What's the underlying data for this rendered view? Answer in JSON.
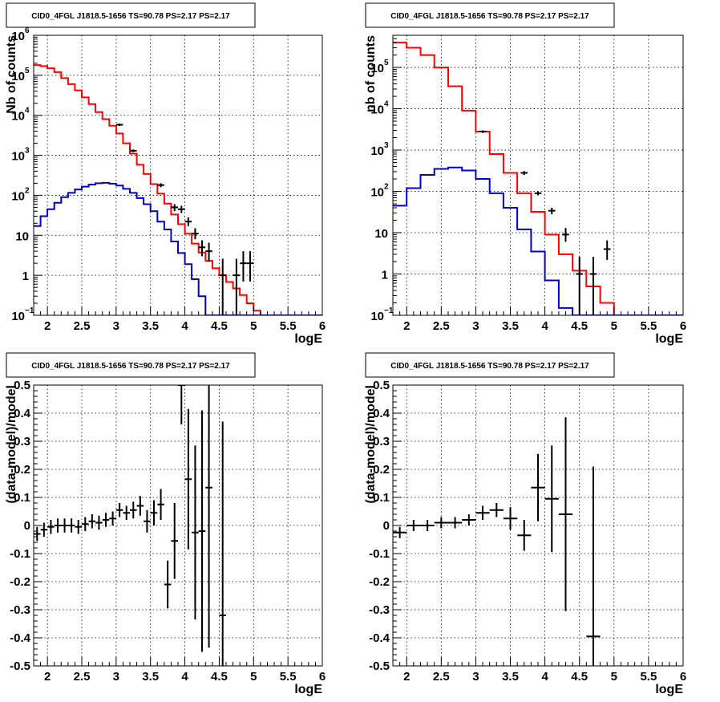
{
  "chart_data": [
    {
      "type": "line",
      "title": "CID0_4FGL J1818.5-1656 TS=90.78 PS=2.17 PS=2.17",
      "xlabel": "logE",
      "ylabel": "Nb of counts",
      "xlim": [
        1.8,
        6.0
      ],
      "ylim": [
        0.1,
        1000000
      ],
      "yscale": "log",
      "grid": true,
      "x_ticks": [
        "2",
        "2.5",
        "3",
        "3.5",
        "4",
        "4.5",
        "5",
        "5.5",
        "6"
      ],
      "y_ticks": [
        {
          "value": 0.1,
          "mantissa": "10",
          "exp": "−1"
        },
        {
          "value": 1,
          "mantissa": "1",
          "exp": ""
        },
        {
          "value": 10,
          "mantissa": "10",
          "exp": ""
        },
        {
          "value": 100,
          "mantissa": "10",
          "exp": "2"
        },
        {
          "value": 1000,
          "mantissa": "10",
          "exp": "3"
        },
        {
          "value": 10000,
          "mantissa": "10",
          "exp": "4"
        },
        {
          "value": 100000,
          "mantissa": "10",
          "exp": "5"
        },
        {
          "value": 1000000,
          "mantissa": "10",
          "exp": "6"
        }
      ],
      "bin_edges": [
        1.8,
        1.9,
        2.0,
        2.1,
        2.2,
        2.3,
        2.4,
        2.5,
        2.6,
        2.7,
        2.8,
        2.9,
        3.0,
        3.1,
        3.2,
        3.3,
        3.4,
        3.5,
        3.6,
        3.7,
        3.8,
        3.9,
        4.0,
        4.1,
        4.2,
        4.3,
        4.4,
        4.5,
        4.6,
        4.7,
        4.8,
        4.9,
        5.0,
        5.1,
        5.2,
        5.3,
        5.4,
        5.5,
        5.6,
        5.7,
        5.8,
        5.9,
        6.0
      ],
      "series": [
        {
          "color": "#ff0000",
          "values": [
            180000,
            170000,
            150000,
            120000,
            85000,
            60000,
            42000,
            28000,
            19000,
            12000,
            8000,
            5500,
            3500,
            2000,
            1100,
            580,
            340,
            190,
            110,
            62,
            33,
            19,
            11,
            6.2,
            3.7,
            2.3,
            1.5,
            1.0,
            0.68,
            0.47,
            0.32,
            0.2,
            0.13,
            0.1,
            0.05,
            0.05,
            0.05,
            0.05,
            0.05,
            0.05,
            0.05,
            0.05
          ]
        },
        {
          "color": "#0000cc",
          "values": [
            17,
            30,
            45,
            65,
            90,
            115,
            140,
            165,
            185,
            200,
            205,
            195,
            175,
            145,
            115,
            85,
            60,
            40,
            22,
            14,
            7,
            3.6,
            1.9,
            0.8,
            0.3,
            0.05,
            0.05,
            0.05,
            0.05,
            0.05,
            0.05,
            0.05,
            0.05,
            0.05,
            0.05,
            0.05,
            0.05,
            0.05,
            0.05,
            0.05,
            0.05,
            0.05
          ]
        }
      ],
      "data_points": [
        {
          "x": 3.05,
          "y": 5800,
          "ylo": 5400,
          "yhi": 6200
        },
        {
          "x": 3.25,
          "y": 1300,
          "ylo": 1200,
          "yhi": 1400
        },
        {
          "x": 3.65,
          "y": 180,
          "ylo": 160,
          "yhi": 200
        },
        {
          "x": 3.85,
          "y": 50,
          "ylo": 40,
          "yhi": 60
        },
        {
          "x": 3.95,
          "y": 45,
          "ylo": 36,
          "yhi": 55
        },
        {
          "x": 4.05,
          "y": 22,
          "ylo": 17,
          "yhi": 28
        },
        {
          "x": 4.15,
          "y": 11,
          "ylo": 8,
          "yhi": 15
        },
        {
          "x": 4.25,
          "y": 5,
          "ylo": 3,
          "yhi": 7.5
        },
        {
          "x": 4.35,
          "y": 4,
          "ylo": 2.2,
          "yhi": 6.5
        },
        {
          "x": 4.55,
          "y": 1,
          "ylo": 0.1,
          "yhi": 2.6
        },
        {
          "x": 4.75,
          "y": 1,
          "ylo": 0.1,
          "yhi": 2.6
        },
        {
          "x": 4.85,
          "y": 2,
          "ylo": 0.7,
          "yhi": 4
        },
        {
          "x": 4.95,
          "y": 2,
          "ylo": 0.7,
          "yhi": 4
        }
      ]
    },
    {
      "type": "line",
      "title": "CID0_4FGL J1818.5-1656 TS=90.78 PS=2.17 PS=2.17",
      "xlabel": "logE",
      "ylabel": "nb of counts",
      "xlim": [
        1.8,
        6.0
      ],
      "ylim": [
        0.1,
        600000
      ],
      "yscale": "log",
      "grid": true,
      "x_ticks": [
        "2",
        "2.5",
        "3",
        "3.5",
        "4",
        "4.5",
        "5",
        "5.5",
        "6"
      ],
      "y_ticks": [
        {
          "value": 0.1,
          "mantissa": "10",
          "exp": "−1"
        },
        {
          "value": 1,
          "mantissa": "1",
          "exp": ""
        },
        {
          "value": 10,
          "mantissa": "10",
          "exp": ""
        },
        {
          "value": 100,
          "mantissa": "10",
          "exp": "2"
        },
        {
          "value": 1000,
          "mantissa": "10",
          "exp": "3"
        },
        {
          "value": 10000,
          "mantissa": "10",
          "exp": "4"
        },
        {
          "value": 100000,
          "mantissa": "10",
          "exp": "5"
        }
      ],
      "bin_edges": [
        1.8,
        2.0,
        2.2,
        2.4,
        2.6,
        2.8,
        3.0,
        3.2,
        3.4,
        3.6,
        3.8,
        4.0,
        4.2,
        4.4,
        4.6,
        4.8,
        5.0,
        5.2,
        5.4,
        5.6,
        5.8,
        6.0
      ],
      "series": [
        {
          "color": "#ff0000",
          "values": [
            400000,
            300000,
            200000,
            100000,
            35000,
            9000,
            2800,
            800,
            280,
            90,
            32,
            9,
            3,
            1.2,
            0.5,
            0.2,
            0.05,
            0.05,
            0.05,
            0.05,
            0.05
          ]
        },
        {
          "color": "#0000cc",
          "values": [
            45,
            120,
            250,
            350,
            380,
            320,
            200,
            90,
            40,
            12,
            3.5,
            0.7,
            0.15,
            0.05,
            0.05,
            0.05,
            0.05,
            0.05,
            0.05,
            0.05,
            0.05
          ]
        }
      ],
      "data_points": [
        {
          "x": 3.1,
          "y": 2800,
          "ylo": 2600,
          "yhi": 3000
        },
        {
          "x": 3.7,
          "y": 280,
          "ylo": 250,
          "yhi": 310
        },
        {
          "x": 3.9,
          "y": 90,
          "ylo": 80,
          "yhi": 100
        },
        {
          "x": 4.1,
          "y": 34,
          "ylo": 28,
          "yhi": 40
        },
        {
          "x": 4.3,
          "y": 9,
          "ylo": 6,
          "yhi": 13
        },
        {
          "x": 4.5,
          "y": 1,
          "ylo": 0.1,
          "yhi": 2.6
        },
        {
          "x": 4.7,
          "y": 1,
          "ylo": 0.1,
          "yhi": 2.6
        },
        {
          "x": 4.9,
          "y": 4,
          "ylo": 2.2,
          "yhi": 6.5
        }
      ]
    },
    {
      "type": "scatter",
      "title": "CID0_4FGL J1818.5-1656 TS=90.78 PS=2.17 PS=2.17",
      "xlabel": "logE",
      "ylabel": "(data-model)/model",
      "xlim": [
        1.8,
        6.0
      ],
      "ylim": [
        -0.5,
        0.5
      ],
      "yscale": "linear",
      "grid": true,
      "x_ticks": [
        "2",
        "2.5",
        "3",
        "3.5",
        "4",
        "4.5",
        "5",
        "5.5",
        "6"
      ],
      "y_ticks": [
        "-0.5",
        "-0.4",
        "-0.3",
        "-0.2",
        "-0.1",
        "0",
        "0.1",
        "0.2",
        "0.3",
        "0.4",
        "0.5"
      ],
      "data_points": [
        {
          "x": 1.85,
          "y": -0.03,
          "err": 0.025
        },
        {
          "x": 1.95,
          "y": -0.015,
          "err": 0.025
        },
        {
          "x": 2.05,
          "y": -0.005,
          "err": 0.025
        },
        {
          "x": 2.15,
          "y": 0.0,
          "err": 0.025
        },
        {
          "x": 2.25,
          "y": 0.0,
          "err": 0.025
        },
        {
          "x": 2.35,
          "y": 0.0,
          "err": 0.025
        },
        {
          "x": 2.45,
          "y": -0.005,
          "err": 0.025
        },
        {
          "x": 2.55,
          "y": 0.005,
          "err": 0.025
        },
        {
          "x": 2.65,
          "y": 0.015,
          "err": 0.025
        },
        {
          "x": 2.75,
          "y": 0.01,
          "err": 0.025
        },
        {
          "x": 2.85,
          "y": 0.02,
          "err": 0.025
        },
        {
          "x": 2.95,
          "y": 0.025,
          "err": 0.025
        },
        {
          "x": 3.05,
          "y": 0.055,
          "err": 0.025
        },
        {
          "x": 3.15,
          "y": 0.045,
          "err": 0.025
        },
        {
          "x": 3.25,
          "y": 0.055,
          "err": 0.03
        },
        {
          "x": 3.35,
          "y": 0.07,
          "err": 0.035
        },
        {
          "x": 3.45,
          "y": 0.015,
          "err": 0.04
        },
        {
          "x": 3.55,
          "y": 0.045,
          "err": 0.045
        },
        {
          "x": 3.65,
          "y": 0.075,
          "err": 0.055
        },
        {
          "x": 3.75,
          "y": -0.21,
          "err": 0.085
        },
        {
          "x": 3.85,
          "y": -0.055,
          "err": 0.135
        },
        {
          "x": 3.95,
          "y": 0.5,
          "err": 0.14
        },
        {
          "x": 4.05,
          "y": 0.165,
          "err": 0.25
        },
        {
          "x": 4.15,
          "y": -0.025,
          "err": 0.31
        },
        {
          "x": 4.25,
          "y": -0.02,
          "err": 0.43
        },
        {
          "x": 4.35,
          "y": 0.135,
          "err": 0.57
        },
        {
          "x": 4.55,
          "y": -0.32,
          "err": 0.69
        }
      ]
    },
    {
      "type": "scatter",
      "title": "CID0_4FGL J1818.5-1656 TS=90.78 PS=2.17 PS=2.17",
      "xlabel": "logE",
      "ylabel": "(data-model)/model",
      "xlim": [
        1.8,
        6.0
      ],
      "ylim": [
        -0.5,
        0.5
      ],
      "yscale": "linear",
      "grid": true,
      "x_ticks": [
        "2",
        "2.5",
        "3",
        "3.5",
        "4",
        "4.5",
        "5",
        "5.5",
        "6"
      ],
      "y_ticks": [
        "-0.5",
        "-0.4",
        "-0.3",
        "-0.2",
        "-0.1",
        "0",
        "0.1",
        "0.2",
        "0.3",
        "0.4",
        "0.5"
      ],
      "data_points": [
        {
          "x": 1.9,
          "y": -0.025,
          "err": 0.02,
          "xerr": 0.1
        },
        {
          "x": 2.1,
          "y": 0.0,
          "err": 0.02,
          "xerr": 0.1
        },
        {
          "x": 2.3,
          "y": 0.0,
          "err": 0.02,
          "xerr": 0.1
        },
        {
          "x": 2.5,
          "y": 0.01,
          "err": 0.02,
          "xerr": 0.1
        },
        {
          "x": 2.7,
          "y": 0.01,
          "err": 0.02,
          "xerr": 0.1
        },
        {
          "x": 2.9,
          "y": 0.02,
          "err": 0.02,
          "xerr": 0.1
        },
        {
          "x": 3.1,
          "y": 0.045,
          "err": 0.025,
          "xerr": 0.1
        },
        {
          "x": 3.3,
          "y": 0.055,
          "err": 0.025,
          "xerr": 0.1
        },
        {
          "x": 3.5,
          "y": 0.025,
          "err": 0.04,
          "xerr": 0.1
        },
        {
          "x": 3.7,
          "y": -0.035,
          "err": 0.055,
          "xerr": 0.1
        },
        {
          "x": 3.9,
          "y": 0.135,
          "err": 0.12,
          "xerr": 0.1
        },
        {
          "x": 4.1,
          "y": 0.095,
          "err": 0.19,
          "xerr": 0.1
        },
        {
          "x": 4.3,
          "y": 0.04,
          "err": 0.345,
          "xerr": 0.1
        },
        {
          "x": 4.7,
          "y": -0.395,
          "err": 0.605,
          "xerr": 0.1
        }
      ]
    }
  ]
}
